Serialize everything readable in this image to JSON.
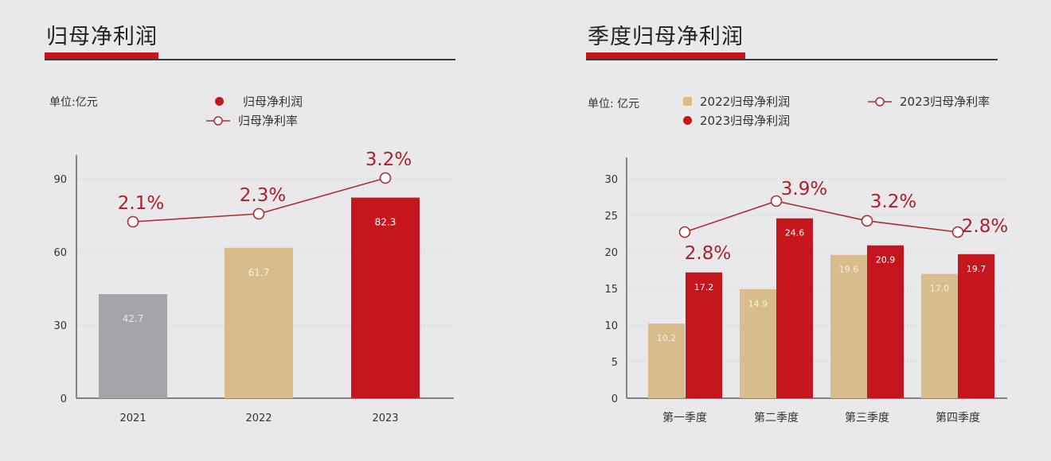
{
  "colors": {
    "red": "#c4161c",
    "tan": "#d9bc8c",
    "gray": "#a3a5a9",
    "line": "#b02a30",
    "rate_text": "#b21e28"
  },
  "left": {
    "title": "归母净利润",
    "unit": "单位:亿元",
    "legend": {
      "bar": "归母净利润",
      "line": "归母净利率"
    }
  },
  "right": {
    "title": "季度归母净利润",
    "unit": "单位: 亿元",
    "legend": {
      "s2022": "2022归母净利润",
      "s2023": "2023归母净利润",
      "line": "2023归母净利率"
    }
  },
  "chart_data": [
    {
      "type": "bar",
      "title": "归母净利润",
      "categories": [
        "2021",
        "2022",
        "2023"
      ],
      "ylim": [
        0,
        90
      ],
      "yticks": [
        "0",
        "30",
        "60",
        "90"
      ],
      "series": [
        {
          "name": "归母净利润",
          "values": [
            42.7,
            61.7,
            82.3
          ],
          "labels": [
            "42.7",
            "61.7",
            "82.3"
          ],
          "colors": [
            "#a3a5a9",
            "#d9bc8c",
            "#c4161c"
          ]
        },
        {
          "name": "归母净利率",
          "type": "line",
          "values": [
            2.1,
            2.3,
            3.2
          ],
          "labels": [
            "2.1%",
            "2.3%",
            "3.2%"
          ]
        }
      ]
    },
    {
      "type": "bar",
      "title": "季度归母净利润",
      "categories": [
        "第一季度",
        "第二季度",
        "第三季度",
        "第四季度"
      ],
      "ylim": [
        0,
        30
      ],
      "yticks": [
        "0",
        "5",
        "10",
        "15",
        "20",
        "25",
        "30"
      ],
      "series": [
        {
          "name": "2022归母净利润",
          "values": [
            10.2,
            14.9,
            19.6,
            17.0
          ],
          "labels": [
            "10.2",
            "14.9",
            "19.6",
            "17.0"
          ],
          "color": "#d9bc8c"
        },
        {
          "name": "2023归母净利润",
          "values": [
            17.2,
            24.6,
            20.9,
            19.7
          ],
          "labels": [
            "17.2",
            "24.6",
            "20.9",
            "19.7"
          ],
          "color": "#c4161c"
        },
        {
          "name": "2023归母净利率",
          "type": "line",
          "values": [
            2.8,
            3.9,
            3.2,
            2.8
          ],
          "labels": [
            "2.8%",
            "3.9%",
            "3.2%",
            "2.8%"
          ]
        }
      ]
    }
  ]
}
